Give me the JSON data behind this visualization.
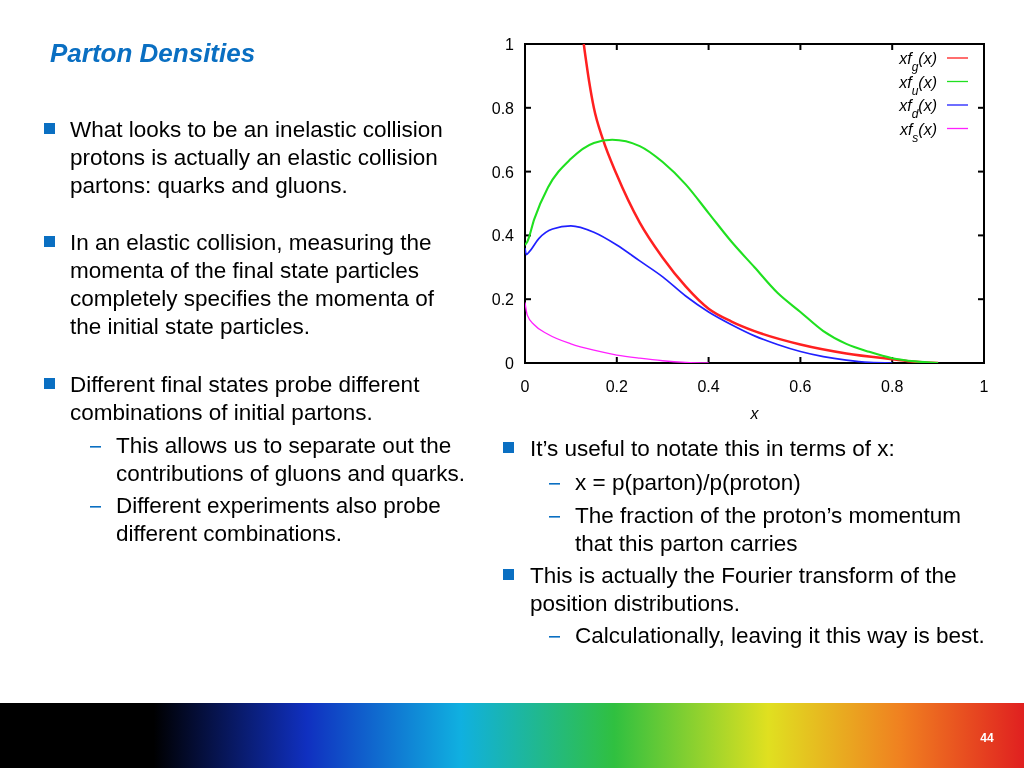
{
  "chart_data": {
    "type": "line",
    "title": "Parton Densities",
    "xlabel": "x",
    "xlim": [
      0,
      1
    ],
    "ylim": [
      0,
      1
    ],
    "xticks": [
      0,
      {
        "value": 0.2,
        "label": "0.2"
      },
      {
        "value": 0.4,
        "label": "0.4"
      },
      {
        "value": 0.6,
        "label": "0.6"
      },
      {
        "value": 0.8,
        "label": "0.8"
      },
      1
    ],
    "yticks": [
      0,
      {
        "value": 0.2,
        "label": "0.2"
      },
      {
        "value": 0.4,
        "label": "0.4"
      },
      {
        "value": 0.6,
        "label": "0.6"
      },
      {
        "value": 0.8,
        "label": "0.8"
      },
      1
    ],
    "grid": false,
    "legend": "top right",
    "line_style": "solid",
    "series": [
      {
        "name": "xf$_{g}$(x)",
        "color": "#ff2020",
        "x": [
          0.128,
          0.14,
          0.15,
          0.17,
          0.2,
          0.25,
          0.3,
          0.35,
          0.4,
          0.45,
          0.5,
          0.6,
          0.7,
          0.8,
          0.85,
          0.9
        ],
        "values": [
          1.0,
          0.88,
          0.8,
          0.7,
          0.59,
          0.44,
          0.33,
          0.24,
          0.17,
          0.13,
          0.1,
          0.058,
          0.03,
          0.012,
          0.004,
          0
        ]
      },
      {
        "name": "xf$_{u}$(x)",
        "color": "#20e020",
        "x": [
          0,
          0.005,
          0.02,
          0.05,
          0.1,
          0.15,
          0.19,
          0.25,
          0.3,
          0.35,
          0.4,
          0.45,
          0.5,
          0.55,
          0.6,
          0.65,
          0.7,
          0.75,
          0.8,
          0.85,
          0.9
        ],
        "values": [
          0.37,
          0.38,
          0.45,
          0.55,
          0.64,
          0.69,
          0.7,
          0.68,
          0.63,
          0.56,
          0.47,
          0.38,
          0.3,
          0.22,
          0.16,
          0.1,
          0.06,
          0.035,
          0.015,
          0.005,
          0
        ]
      },
      {
        "name": "xf$_{d}$(x)",
        "color": "#2020ff",
        "x": [
          0,
          0.003,
          0.01,
          0.03,
          0.06,
          0.1,
          0.15,
          0.2,
          0.25,
          0.3,
          0.35,
          0.4,
          0.45,
          0.5,
          0.55,
          0.6,
          0.65,
          0.7,
          0.75,
          0.8
        ],
        "values": [
          0.36,
          0.34,
          0.35,
          0.39,
          0.42,
          0.43,
          0.41,
          0.37,
          0.32,
          0.27,
          0.21,
          0.16,
          0.12,
          0.085,
          0.058,
          0.036,
          0.02,
          0.009,
          0.002,
          0
        ]
      },
      {
        "name": "xf$_{s}$(x)",
        "color": "#ff20ff",
        "x": [
          0,
          0.005,
          0.02,
          0.05,
          0.1,
          0.15,
          0.2,
          0.25,
          0.3,
          0.35,
          0.4
        ],
        "values": [
          0.19,
          0.15,
          0.12,
          0.09,
          0.06,
          0.04,
          0.025,
          0.015,
          0.007,
          0.002,
          0
        ]
      }
    ],
    "annotations": [
      "What looks to be an inelastic collision protons is actually an elastic collision partons: quarks and gluons.",
      "In an elastic collision, measuring the momenta of the final state particles completely specifies the momenta of the initial state particles.",
      "Different final states probe different combinations of initial partons.",
      "This allows us to separate out the contributions of gluons and quarks.",
      "Different experiments also probe different combinations.",
      "It’s useful to notate this in terms of x:",
      "x = p(parton)/p(proton)",
      "The fraction of the proton’s momentum that this parton carries",
      "This is actually the Fourier transform of the position distributions.",
      "Calculationally, leaving it this way is best.",
      "44"
    ]
  }
}
